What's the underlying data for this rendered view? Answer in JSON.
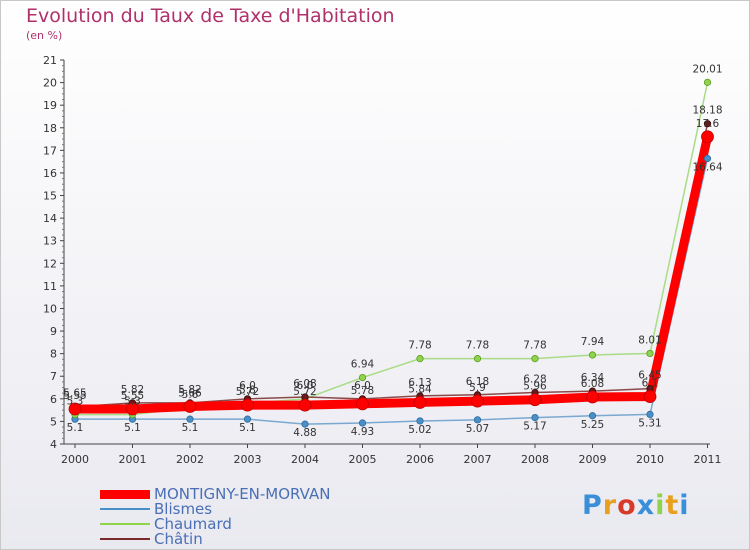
{
  "title": "Evolution du Taux de Taxe d'Habitation",
  "subtitle": "(en %)",
  "chart_data": {
    "type": "line",
    "x": [
      "2000",
      "2001",
      "2002",
      "2003",
      "2004",
      "2005",
      "2006",
      "2007",
      "2008",
      "2009",
      "2010",
      "2011"
    ],
    "ylim": [
      4,
      21
    ],
    "y_ticks": [
      "4",
      "5",
      "6",
      "7",
      "8",
      "9",
      "10",
      "11",
      "12",
      "13",
      "14",
      "15",
      "16",
      "17",
      "18",
      "19",
      "20",
      "21"
    ],
    "grid": false,
    "legend_position": "bottom-left",
    "series": [
      {
        "name": "MONTIGNY-EN-MORVAN",
        "color": "#ff0000",
        "values": [
          5.55,
          5.55,
          5.66,
          5.72,
          5.72,
          5.78,
          5.84,
          5.9,
          5.96,
          6.08,
          6.1,
          17.6
        ],
        "labels": [
          "5.55",
          "5.55",
          "5.66",
          "5.72",
          "5.72",
          "5.78",
          "5.84",
          "5.9",
          "5.96",
          "6.08",
          "6.1",
          "17.6"
        ]
      },
      {
        "name": "Blismes",
        "color": "#4a90c8",
        "values": [
          5.1,
          5.1,
          5.1,
          5.1,
          4.88,
          4.93,
          5.02,
          5.07,
          5.17,
          5.25,
          5.31,
          16.64
        ],
        "labels": [
          "5.1",
          "5.1",
          "5.1",
          "5.1",
          "4.88",
          "4.93",
          "5.02",
          "5.07",
          "5.17",
          "5.25",
          "5.31",
          "16.64"
        ]
      },
      {
        "name": "Chaumard",
        "color": "#8fd44a",
        "values": [
          5.3,
          5.3,
          5.6,
          5.8,
          6.0,
          6.94,
          7.78,
          7.78,
          7.78,
          7.94,
          8.01,
          20.01
        ],
        "labels": [
          "5.3",
          "5.3",
          "5.6",
          "5.8",
          "6.0",
          "6.94",
          "7.78",
          "7.78",
          "7.78",
          "7.94",
          "8.01",
          "20.01"
        ]
      },
      {
        "name": "Châtin",
        "color": "#7a2a2a",
        "values": [
          5.65,
          5.82,
          5.82,
          6.0,
          6.08,
          6.0,
          6.13,
          6.18,
          6.28,
          6.34,
          6.45,
          18.18
        ],
        "labels": [
          "5.65",
          "5.82",
          "5.82",
          "6.0",
          "6.08",
          "6.0",
          "6.13",
          "6.18",
          "6.28",
          "6.34",
          "6.45",
          "18.18"
        ]
      }
    ]
  },
  "logo": {
    "letters": [
      "P",
      "r",
      "o",
      "x",
      "i",
      "t",
      "i"
    ],
    "colors": [
      "#3a8fd8",
      "#e8a020",
      "#d83a2a",
      "#3a8fd8",
      "#8fd44a",
      "#e8a020",
      "#3a8fd8"
    ]
  }
}
